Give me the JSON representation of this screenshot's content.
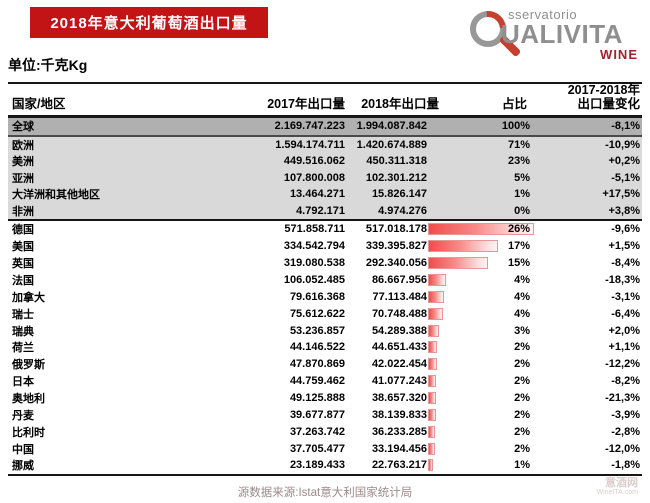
{
  "header": {
    "title": "2018年意大利葡萄酒出口量",
    "unit_label": "单位:千克Kg",
    "logo": {
      "osservatorio": "sservatorio",
      "qualivita": "UALIVITA",
      "wine": "WINE"
    }
  },
  "chart_data": {
    "type": "table",
    "title": "2018年意大利葡萄酒出口量",
    "unit": "千克Kg",
    "legend": "rows show 2017/2018 export volume (Kg), share of total, and 2017-2018 change; country share column rendered as red gradient bars",
    "columns": {
      "region": "国家/地区",
      "y2017": "2017年出口量",
      "y2018": "2018年出口量",
      "share": "占比",
      "change_line1": "2017-2018年",
      "change_line2": "出口量变化"
    },
    "regions": [
      {
        "name": "全球",
        "v2017": "2.169.747.223",
        "v2018": "1.994.087.842",
        "share": "100%",
        "change": "-8,1%",
        "level": "world"
      },
      {
        "name": "欧洲",
        "v2017": "1.594.174.711",
        "v2018": "1.420.674.889",
        "share": "71%",
        "change": "-10,9%",
        "level": "continent"
      },
      {
        "name": "美洲",
        "v2017": "449.516.062",
        "v2018": "450.311.318",
        "share": "23%",
        "change": "+0,2%",
        "level": "continent"
      },
      {
        "name": "亚洲",
        "v2017": "107.800.008",
        "v2018": "102.301.212",
        "share": "5%",
        "change": "-5,1%",
        "level": "continent"
      },
      {
        "name": "大洋洲和其他地区",
        "v2017": "13.464.271",
        "v2018": "15.826.147",
        "share": "1%",
        "change": "+17,5%",
        "level": "continent"
      },
      {
        "name": "非洲",
        "v2017": "4.792.171",
        "v2018": "4.974.276",
        "share": "0%",
        "change": "+3,8%",
        "level": "continent"
      }
    ],
    "countries": [
      {
        "name": "德国",
        "v2017": "571.858.711",
        "v2018": "517.018.178",
        "share": "26%",
        "change": "-9,6%"
      },
      {
        "name": "美国",
        "v2017": "334.542.794",
        "v2018": "339.395.827",
        "share": "17%",
        "change": "+1,5%"
      },
      {
        "name": "英国",
        "v2017": "319.080.538",
        "v2018": "292.340.056",
        "share": "15%",
        "change": "-8,4%"
      },
      {
        "name": "法国",
        "v2017": "106.052.485",
        "v2018": "86.667.956",
        "share": "4%",
        "change": "-18,3%"
      },
      {
        "name": "加拿大",
        "v2017": "79.616.368",
        "v2018": "77.113.484",
        "share": "4%",
        "change": "-3,1%"
      },
      {
        "name": "瑞士",
        "v2017": "75.612.622",
        "v2018": "70.748.488",
        "share": "4%",
        "change": "-6,4%"
      },
      {
        "name": "瑞典",
        "v2017": "53.236.857",
        "v2018": "54.289.388",
        "share": "3%",
        "change": "+2,0%"
      },
      {
        "name": "荷兰",
        "v2017": "44.146.522",
        "v2018": "44.651.433",
        "share": "2%",
        "change": "+1,1%"
      },
      {
        "name": "俄罗斯",
        "v2017": "47.870.869",
        "v2018": "42.022.454",
        "share": "2%",
        "change": "-12,2%"
      },
      {
        "name": "日本",
        "v2017": "44.759.462",
        "v2018": "41.077.243",
        "share": "2%",
        "change": "-8,2%"
      },
      {
        "name": "奥地利",
        "v2017": "49.125.888",
        "v2018": "38.657.320",
        "share": "2%",
        "change": "-21,3%"
      },
      {
        "name": "丹麦",
        "v2017": "39.677.877",
        "v2018": "38.139.833",
        "share": "2%",
        "change": "-3,9%"
      },
      {
        "name": "比利时",
        "v2017": "37.263.742",
        "v2018": "36.233.285",
        "share": "2%",
        "change": "-2,8%"
      },
      {
        "name": "中国",
        "v2017": "37.705.477",
        "v2018": "33.194.456",
        "share": "2%",
        "change": "-12,0%"
      },
      {
        "name": "挪威",
        "v2017": "23.189.433",
        "v2018": "22.763.217",
        "share": "1%",
        "change": "-1,8%"
      }
    ]
  },
  "footer": {
    "source": "源数据来源:Istat意大利国家统计局",
    "watermark_line1": "意酒网",
    "watermark_line2": "WineITA.com"
  },
  "colors": {
    "banner_red": "#c21414",
    "bar_gradient_start": "#ef4d4c",
    "bar_gradient_end": "#fdf3f3",
    "bar_border": "#e89595",
    "world_row_bg": "#b0b0b0",
    "continent_row_bg": "#d9d9d9",
    "wine_red": "#a81f2d",
    "logo_gray": "#8f8f8f",
    "footer_text": "#9b8a8a"
  }
}
